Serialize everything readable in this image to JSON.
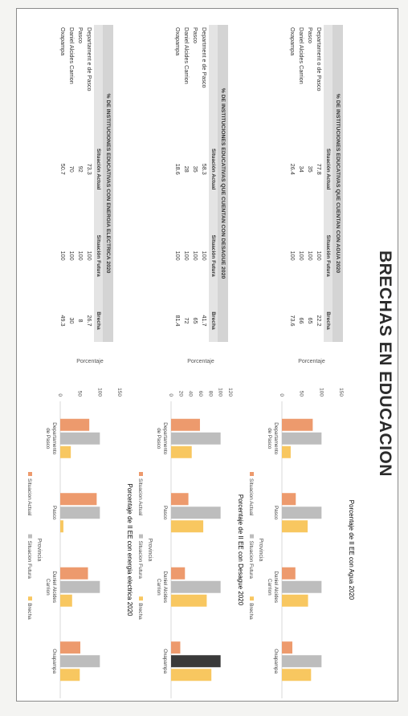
{
  "page": {
    "title": "BRECHAS EN EDUCACION"
  },
  "tables": [
    {
      "caption": "% DE INSTITUCIONES EDUCATIVAS QUE CUENTAN CON AGUA 2020",
      "headers": [
        "",
        "Situación Actual",
        "Situación Futura",
        "Brecha"
      ],
      "rows": [
        [
          "Departament o de Pasco",
          "77.8",
          "100",
          "22.2"
        ],
        [
          "Pasco",
          "35",
          "100",
          "65"
        ],
        [
          "Daniel Alcides Carrion",
          "34",
          "100",
          "66"
        ],
        [
          "Oxapampa",
          "26.4",
          "100",
          "73.6"
        ]
      ]
    },
    {
      "caption": "% DE INSTITUCIONES EDUCATIVAS QUE CUENTAN CON DESAGUE 2020",
      "headers": [
        "",
        "Situación Actual",
        "Situación Futura",
        "Brecha"
      ],
      "rows": [
        [
          "Department e de Pasco",
          "58.3",
          "100",
          "41.7"
        ],
        [
          "Pasco",
          "35",
          "100",
          "65"
        ],
        [
          "Daniel Alcides Carrion",
          "28",
          "100",
          "72"
        ],
        [
          "Oxapampa",
          "18.6",
          "100",
          "81.4"
        ]
      ]
    },
    {
      "caption": "% DE INSTITUCIONES EDUCATIVAS CON ENERGIA ELECTRICA 2020",
      "headers": [
        "",
        "Situación Actual",
        "Situación Futura",
        "Brecha"
      ],
      "rows": [
        [
          "Departament e de Pasco",
          "73.3",
          "100",
          "26.7"
        ],
        [
          "Pasco",
          "92",
          "100",
          "8"
        ],
        [
          "Daniel Alcides Carrion",
          "70",
          "100",
          "30"
        ],
        [
          "Oxapampa",
          "50.7",
          "100",
          "49.3"
        ]
      ]
    }
  ],
  "colors": {
    "actual": "#ed9a6d",
    "futura": "#bdbdbd",
    "brecha": "#f8c760",
    "highlight": "#3a3a3a"
  },
  "chart_data": [
    {
      "type": "bar",
      "title": "Porcentaje de II EE con Agua 2020",
      "xlabel": "Provincia",
      "ylabel": "Porcentaje",
      "ylim": [
        0,
        150
      ],
      "yticks": [
        "0",
        "50",
        "100",
        "150"
      ],
      "categories": [
        "Departamento de Pasco",
        "Pasco",
        "Daniel Alcides Carrion",
        "Oxapampa"
      ],
      "series": [
        {
          "name": "Situacion Actual",
          "values": [
            77.8,
            35,
            34,
            26.4
          ]
        },
        {
          "name": "Situacion Futura",
          "values": [
            100,
            100,
            100,
            100
          ]
        },
        {
          "name": "Brecha",
          "values": [
            22.2,
            65,
            66,
            73.6
          ]
        }
      ],
      "legend": "bottom",
      "grid": false
    },
    {
      "type": "bar",
      "title": "Porcentaje de II EE con Desague 2020",
      "xlabel": "Provincia",
      "ylabel": "Porcentaje",
      "ylim": [
        0,
        120
      ],
      "yticks": [
        "0",
        "20",
        "40",
        "60",
        "80",
        "100",
        "120"
      ],
      "categories": [
        "Departamento de Pasco",
        "Pasco",
        "Daniel Alcides Carrion",
        "Oxapampa"
      ],
      "series": [
        {
          "name": "Situacion Actual",
          "values": [
            58.3,
            35,
            28,
            18.6
          ]
        },
        {
          "name": "Situacion Futura",
          "values": [
            100,
            100,
            100,
            100
          ]
        },
        {
          "name": "Brecha",
          "values": [
            41.7,
            65,
            72,
            81.4
          ]
        }
      ],
      "legend": "bottom",
      "grid": false
    },
    {
      "type": "bar",
      "title": "Porcentaje de II EE con energia electrica 2020",
      "xlabel": "Provincia",
      "ylabel": "Porcentaje",
      "ylim": [
        0,
        150
      ],
      "yticks": [
        "0",
        "50",
        "100",
        "150"
      ],
      "categories": [
        "Departamento de Pasco",
        "Pasco",
        "Daniel Alcides Carrion",
        "Oxapampa"
      ],
      "series": [
        {
          "name": "Situacion Actual",
          "values": [
            73.3,
            92,
            70,
            50.7
          ]
        },
        {
          "name": "Situacion Futura",
          "values": [
            100,
            100,
            100,
            100
          ]
        },
        {
          "name": "Brecha",
          "values": [
            26.7,
            8,
            30,
            49.3
          ]
        }
      ],
      "legend": "bottom",
      "grid": false
    }
  ]
}
